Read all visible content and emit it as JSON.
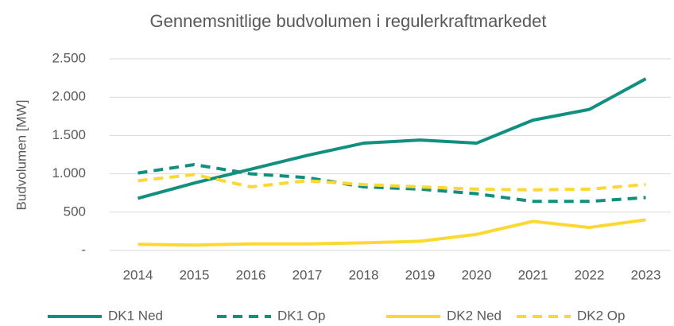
{
  "chart_data": {
    "type": "line",
    "title": "Gennemsnitlige budvolumen i regulerkraftmarkedet",
    "y_label": "Budvolumen [MW]",
    "categories": [
      "2014",
      "2015",
      "2016",
      "2017",
      "2018",
      "2019",
      "2020",
      "2021",
      "2022",
      "2023"
    ],
    "series": [
      {
        "name": "DK1 Ned",
        "color": "#11907f",
        "dashed": false,
        "values": [
          680,
          880,
          1060,
          1240,
          1400,
          1440,
          1400,
          1700,
          1840,
          2240
        ]
      },
      {
        "name": "DK1 Op",
        "color": "#11907f",
        "dashed": true,
        "values": [
          1010,
          1120,
          1000,
          950,
          830,
          800,
          740,
          640,
          640,
          690
        ]
      },
      {
        "name": "DK2 Ned",
        "color": "#fcd833",
        "dashed": false,
        "values": [
          80,
          70,
          85,
          85,
          100,
          120,
          210,
          380,
          300,
          400
        ]
      },
      {
        "name": "DK2 Op",
        "color": "#fcd833",
        "dashed": true,
        "values": [
          910,
          990,
          830,
          910,
          860,
          830,
          800,
          790,
          800,
          860
        ]
      }
    ],
    "ylim": [
      0,
      2500
    ],
    "yticks": [
      {
        "value": 0,
        "label": "-"
      },
      500,
      {
        "value": 1000,
        "label": "1.000"
      },
      {
        "value": 1500,
        "label": "1.500"
      },
      {
        "value": 2000,
        "label": "2.000"
      },
      {
        "value": 2500,
        "label": "2.500"
      }
    ],
    "grid": true,
    "legend": "bottom"
  }
}
